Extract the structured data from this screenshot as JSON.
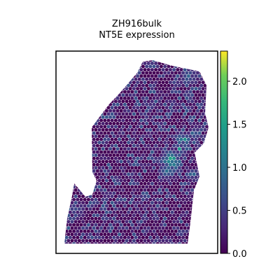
{
  "chart_data": {
    "type": "scatter",
    "title": "ZH916bulk",
    "subtitle": "NT5E expression",
    "xlabel": "",
    "ylabel": "",
    "grid": false,
    "legend": "colorbar-right",
    "colormap": "viridis",
    "colorbar": {
      "range": [
        0.0,
        2.35
      ],
      "ticks": [
        0.0,
        0.5,
        1.0,
        1.5,
        2.0
      ],
      "tick_labels": [
        "0.0",
        "0.5",
        "1.0",
        "1.5",
        "2.0"
      ]
    },
    "colors": {
      "low": "#440154",
      "mid": "#21918c",
      "high": "#fde725"
    }
  }
}
